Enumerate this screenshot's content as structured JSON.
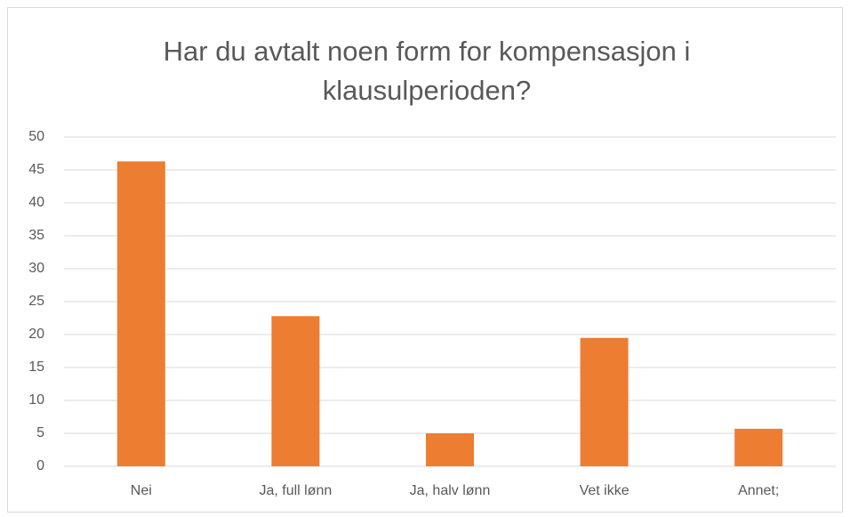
{
  "chart_data": {
    "type": "bar",
    "title": "Har du avtalt noen form for kompensasjon i klausulperioden?",
    "categories": [
      "Nei",
      "Ja, full lønn",
      "Ja, halv lønn",
      "Vet ikke",
      "Annet;"
    ],
    "values": [
      46.3,
      22.8,
      5.0,
      19.5,
      5.7
    ],
    "color": "#ed7d31",
    "ylim": [
      0,
      50
    ],
    "yticks": [
      0,
      5,
      10,
      15,
      20,
      25,
      30,
      35,
      40,
      45,
      50
    ],
    "grid": true
  }
}
